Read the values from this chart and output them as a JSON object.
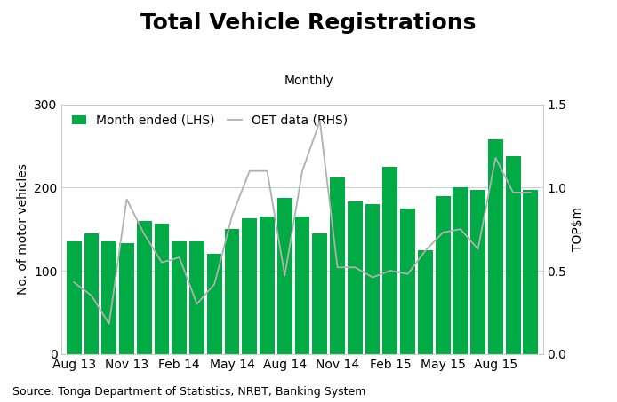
{
  "title": "Total Vehicle Registrations",
  "subtitle": "Monthly",
  "ylabel_left": "No. of motor vehicles",
  "ylabel_right": "TOP$m",
  "source": "Source: Tonga Department of Statistics, NRBT, Banking System",
  "bar_color": "#00aa44",
  "line_color": "#b0b0b0",
  "ylim_left": [
    0,
    300
  ],
  "ylim_right": [
    0,
    1.5
  ],
  "yticks_left": [
    0,
    100,
    200,
    300
  ],
  "yticks_right": [
    0.0,
    0.5,
    1.0,
    1.5
  ],
  "bar_values": [
    135,
    145,
    135,
    133,
    160,
    157,
    135,
    135,
    120,
    150,
    163,
    165,
    188,
    165,
    145,
    212,
    183,
    180,
    225,
    175,
    125,
    190,
    200,
    197,
    258,
    238,
    197
  ],
  "line_values": [
    0.43,
    0.35,
    0.18,
    0.93,
    0.72,
    0.55,
    0.58,
    0.3,
    0.42,
    0.83,
    1.1,
    1.1,
    0.47,
    1.1,
    1.4,
    0.52,
    0.52,
    0.46,
    0.5,
    0.48,
    0.62,
    0.73,
    0.75,
    0.63,
    1.18,
    0.97,
    0.97
  ],
  "legend_bar_label": "Month ended (LHS)",
  "legend_line_label": "OET data (RHS)",
  "title_fontsize": 18,
  "subtitle_fontsize": 10,
  "axis_label_fontsize": 10,
  "tick_fontsize": 10,
  "source_fontsize": 9,
  "background_color": "#ffffff",
  "grid_color": "#cccccc",
  "xtick_positions": [
    0,
    3,
    6,
    9,
    12,
    15,
    18,
    21,
    24,
    26
  ],
  "xtick_labels": [
    "Aug 13",
    "Nov 13",
    "Feb 14",
    "May 14",
    "Aug 14",
    "Nov 14",
    "Feb 15",
    "May 15",
    "Aug 15",
    ""
  ]
}
